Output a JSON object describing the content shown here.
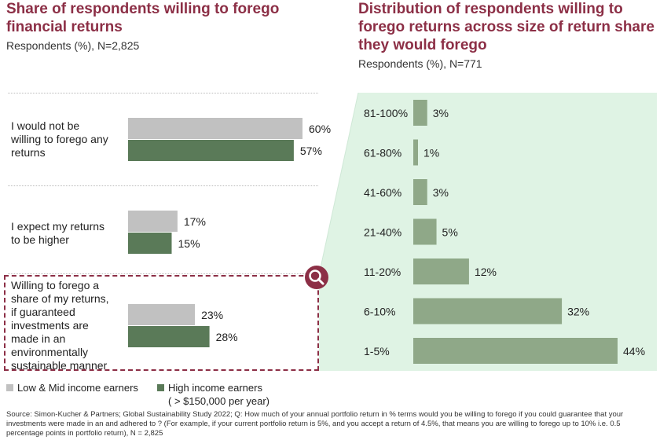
{
  "left_panel": {
    "title": "Share of respondents willing to forego financial returns",
    "subtitle": "Respondents (%), N=2,825"
  },
  "right_panel": {
    "title": "Distribution of respondents willing to forego returns across size of return share they would forego",
    "subtitle": "Respondents (%), N=771"
  },
  "legend": {
    "low_label": "Low & Mid income earners",
    "high_label": "High income earners",
    "high_note": "( > $150,000 per year)"
  },
  "source": "Source: Simon-Kucher & Partners; Global Sustainability Study 2022; Q: How much of your annual portfolio return in % terms would you be willing to forego if you could guarantee that your investments were made in an and adhered to ? (For example, if your current portfolio return is 5%, and you accept a return of 4.5%, that means you are willing to forego up to 10% i.e. 0.5 percentage points in portfolio return), N = 2,825",
  "colors": {
    "title": "#8c2f46",
    "low_bar": "#c1c1c1",
    "high_bar": "#5a7a58",
    "dist_bar": "#8fa888",
    "dist_bg": "#dff3e4",
    "highlight": "#8c2f46"
  },
  "icons": {
    "highlight": "magnifier-icon"
  },
  "chart_data": [
    {
      "type": "bar",
      "orientation": "horizontal",
      "categories": [
        "I would not be willing to forego any returns",
        "I expect my returns to be higher",
        "Willing to forego a share of my returns, if guaranteed investments are made in an environmentally sustainable manner"
      ],
      "category_lines": [
        [
          "I would not be",
          "willing to forego any",
          "returns"
        ],
        [
          "I expect my returns",
          "to be higher"
        ],
        [
          "Willing to forego a",
          "share of my returns,",
          "if guaranteed",
          "investments are",
          "made in an",
          "environmentally",
          "sustainable manner"
        ]
      ],
      "series": [
        {
          "name": "Low & Mid income earners",
          "values": [
            60,
            17,
            23
          ],
          "labels": [
            "60%",
            "17%",
            "23%"
          ]
        },
        {
          "name": "High income earners",
          "values": [
            57,
            15,
            28
          ],
          "labels": [
            "57%",
            "15%",
            "28%"
          ]
        }
      ],
      "xlim": [
        0,
        60
      ],
      "highlighted_category": 2
    },
    {
      "type": "bar",
      "orientation": "horizontal",
      "categories": [
        "81-100%",
        "61-80%",
        "41-60%",
        "21-40%",
        "11-20%",
        "6-10%",
        "1-5%"
      ],
      "values": [
        3,
        1,
        3,
        5,
        12,
        32,
        44
      ],
      "labels": [
        "3%",
        "1%",
        "3%",
        "5%",
        "12%",
        "32%",
        "44%"
      ],
      "xlim": [
        0,
        44
      ]
    }
  ]
}
